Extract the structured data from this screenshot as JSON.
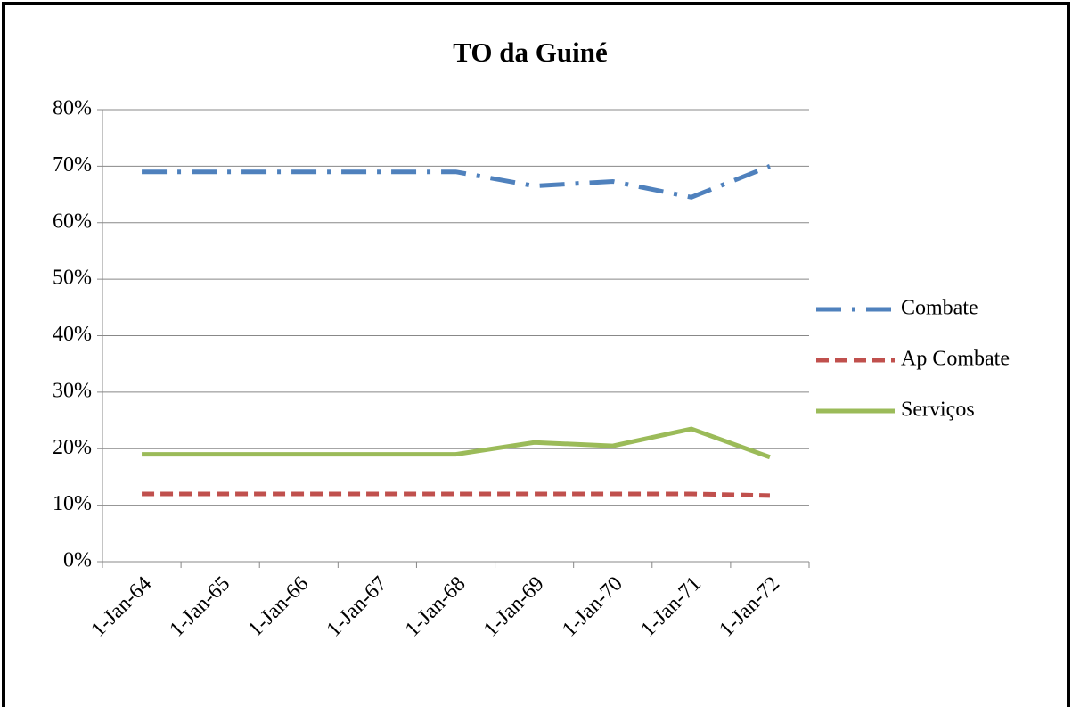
{
  "chart_data": {
    "type": "line",
    "title": "TO da Guiné",
    "categories": [
      "1-Jan-64",
      "1-Jan-65",
      "1-Jan-66",
      "1-Jan-67",
      "1-Jan-68",
      "1-Jan-69",
      "1-Jan-70",
      "1-Jan-71",
      "1-Jan-72"
    ],
    "series": [
      {
        "name": "Combate",
        "color": "#4f81bd",
        "style": "dash-dot",
        "values": [
          69,
          69,
          69,
          69,
          69,
          66.5,
          67.3,
          64.5,
          70
        ]
      },
      {
        "name": "Ap Combate",
        "color": "#c0504d",
        "style": "dash",
        "values": [
          12,
          12,
          12,
          12,
          12,
          12,
          12,
          12,
          11.7
        ]
      },
      {
        "name": "Serviços",
        "color": "#9bbb59",
        "style": "solid",
        "values": [
          19,
          19,
          19,
          19,
          19,
          21.1,
          20.5,
          23.5,
          18.5
        ]
      }
    ],
    "ylim": [
      0,
      80
    ],
    "yticks": [
      {
        "value": 0,
        "label": "0%"
      },
      {
        "value": 10,
        "label": "10%"
      },
      {
        "value": 20,
        "label": "20%"
      },
      {
        "value": 30,
        "label": "30%"
      },
      {
        "value": 40,
        "label": "40%"
      },
      {
        "value": 50,
        "label": "50%"
      },
      {
        "value": 60,
        "label": "60%"
      },
      {
        "value": 70,
        "label": "70%"
      },
      {
        "value": 80,
        "label": "80%"
      }
    ],
    "grid": true,
    "legend": "right"
  }
}
